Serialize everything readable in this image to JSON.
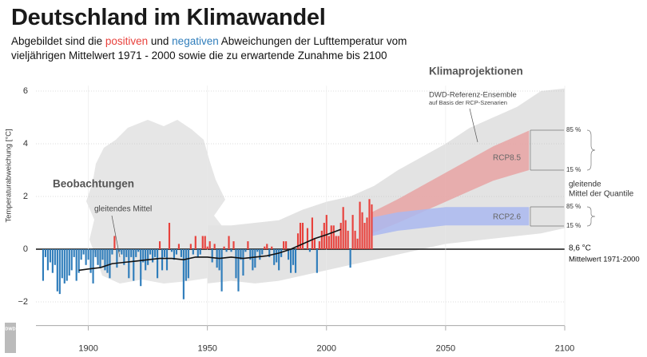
{
  "chart_data": {
    "type": "bar",
    "title": "Deutschland im Klimawandel",
    "subtitle": [
      "Abgebildet sind die ",
      "positiven",
      " und ",
      "negativen",
      " Abweichungen der Lufttemperatur vom",
      "vieljährigen Mittelwert 1971 - 2000 sowie die zu erwartende Zunahme bis 2100"
    ],
    "ylabel": "Temperaturabweichung [°C]",
    "positive_color": "#e8413c",
    "negative_color": "#2f7dbb",
    "x": [
      1881,
      1882,
      1883,
      1884,
      1885,
      1886,
      1887,
      1888,
      1889,
      1890,
      1891,
      1892,
      1893,
      1894,
      1895,
      1896,
      1897,
      1898,
      1899,
      1900,
      1901,
      1902,
      1903,
      1904,
      1905,
      1906,
      1907,
      1908,
      1909,
      1910,
      1911,
      1912,
      1913,
      1914,
      1915,
      1916,
      1917,
      1918,
      1919,
      1920,
      1921,
      1922,
      1923,
      1924,
      1925,
      1926,
      1927,
      1928,
      1929,
      1930,
      1931,
      1932,
      1933,
      1934,
      1935,
      1936,
      1937,
      1938,
      1939,
      1940,
      1941,
      1942,
      1943,
      1944,
      1945,
      1946,
      1947,
      1948,
      1949,
      1950,
      1951,
      1952,
      1953,
      1954,
      1955,
      1956,
      1957,
      1958,
      1959,
      1960,
      1961,
      1962,
      1963,
      1964,
      1965,
      1966,
      1967,
      1968,
      1969,
      1970,
      1971,
      1972,
      1973,
      1974,
      1975,
      1976,
      1977,
      1978,
      1979,
      1980,
      1981,
      1982,
      1983,
      1984,
      1985,
      1986,
      1987,
      1988,
      1989,
      1990,
      1991,
      1992,
      1993,
      1994,
      1995,
      1996,
      1997,
      1998,
      1999,
      2000,
      2001,
      2002,
      2003,
      2004,
      2005,
      2006,
      2007,
      2008,
      2009,
      2010,
      2011,
      2012,
      2013,
      2014,
      2015,
      2016,
      2017,
      2018,
      2019
    ],
    "values": [
      -1.2,
      -0.3,
      -0.8,
      -0.5,
      -0.9,
      -0.6,
      -1.6,
      -1.7,
      -1.1,
      -1.3,
      -1.2,
      -1.0,
      -0.8,
      -0.3,
      -1.2,
      -0.9,
      -0.4,
      -0.2,
      -0.6,
      -0.4,
      -0.9,
      -1.3,
      -0.3,
      -0.6,
      -0.7,
      -0.4,
      -0.8,
      -0.9,
      -1.1,
      -0.2,
      0.5,
      -0.7,
      -0.1,
      -0.2,
      -0.6,
      -0.3,
      -1.1,
      -0.3,
      -1.2,
      -0.3,
      -0.1,
      -1.4,
      -0.5,
      -0.8,
      -0.6,
      -0.2,
      -0.5,
      -0.3,
      -1.1,
      0.3,
      -0.8,
      -0.3,
      -0.8,
      1.0,
      -0.1,
      -0.4,
      -0.2,
      0.2,
      -0.3,
      -1.9,
      -1.2,
      -1.1,
      0.2,
      -0.2,
      0.5,
      -0.3,
      -0.2,
      0.5,
      0.5,
      0.1,
      0.3,
      -0.5,
      0.2,
      -0.7,
      -0.8,
      -1.6,
      0.1,
      -0.1,
      0.5,
      -0.1,
      0.3,
      -1.1,
      -1.6,
      -0.4,
      -1.0,
      -0.1,
      0.3,
      -0.4,
      -0.8,
      -0.7,
      -0.1,
      -0.4,
      -0.2,
      0.1,
      0.2,
      -0.3,
      0.1,
      -0.6,
      -0.5,
      -0.8,
      -0.3,
      0.3,
      0.3,
      -0.4,
      -0.9,
      -0.6,
      -0.9,
      0.6,
      1.0,
      1.0,
      0.0,
      0.8,
      -0.1,
      1.2,
      0.4,
      -0.9,
      0.3,
      0.7,
      1.0,
      1.3,
      0.5,
      0.9,
      0.9,
      0.5,
      0.5,
      1.0,
      1.6,
      1.1,
      0.7,
      -0.7,
      1.3,
      0.7,
      0.4,
      1.8,
      1.4,
      1.0,
      1.2,
      1.9,
      1.7
    ],
    "mean": {
      "name": "gleitendes Mittel",
      "color": "#111111",
      "x": [
        1896,
        1900,
        1905,
        1910,
        1915,
        1920,
        1925,
        1930,
        1935,
        1940,
        1945,
        1950,
        1955,
        1960,
        1965,
        1970,
        1975,
        1980,
        1985,
        1990,
        1995,
        2000,
        2006
      ],
      "values": [
        -0.8,
        -0.75,
        -0.7,
        -0.55,
        -0.5,
        -0.45,
        -0.4,
        -0.35,
        -0.35,
        -0.4,
        -0.3,
        -0.3,
        -0.35,
        -0.3,
        -0.35,
        -0.3,
        -0.25,
        -0.15,
        0.0,
        0.2,
        0.4,
        0.55,
        0.75
      ]
    },
    "ensemble": {
      "name": "DWD-Referenz-Ensemble",
      "note": "auf Basis der RCP-Szenarien",
      "color": "#e3e3e3",
      "x": [
        1950,
        1960,
        1970,
        1980,
        1990,
        2000,
        2010,
        2020,
        2030,
        2040,
        2050,
        2060,
        2070,
        2080,
        2090,
        2100
      ],
      "lower": [
        -1.3,
        -1.2,
        -1.3,
        -1.2,
        -1.0,
        -0.8,
        -0.6,
        -0.4,
        -0.2,
        0.0,
        0.2,
        0.3,
        0.4,
        0.5,
        0.6,
        0.8
      ],
      "upper": [
        0.9,
        0.9,
        1.0,
        1.1,
        1.5,
        1.8,
        2.0,
        2.4,
        3.0,
        3.5,
        4.0,
        4.6,
        5.0,
        5.4,
        6.0,
        6.1
      ]
    },
    "bands": [
      {
        "name": "RCP8.5",
        "color": "#e7a3a3",
        "x": [
          2019,
          2030,
          2040,
          2050,
          2060,
          2070,
          2085
        ],
        "lower": [
          0.6,
          1.0,
          1.4,
          1.8,
          2.2,
          2.6,
          3.0
        ],
        "upper": [
          1.4,
          1.9,
          2.4,
          2.9,
          3.4,
          3.9,
          4.5
        ]
      },
      {
        "name": "RCP2.6",
        "color": "#aab8f0",
        "x": [
          2019,
          2030,
          2040,
          2050,
          2060,
          2070,
          2085
        ],
        "lower": [
          0.5,
          0.7,
          0.8,
          0.9,
          0.9,
          0.9,
          0.9
        ],
        "upper": [
          1.2,
          1.4,
          1.5,
          1.6,
          1.6,
          1.6,
          1.6
        ]
      }
    ],
    "quantile_labels": [
      "85 %",
      "15 %",
      "85 %",
      "15 %"
    ],
    "quantile_note": [
      "gleitende",
      "Mittel der Quantile"
    ],
    "annotations": {
      "observations": "Beobachtungen",
      "projections": "Klimaprojektionen",
      "reference": "8,6 °C",
      "reference_note": "Mittelwert 1971-2000",
      "logo": "DWD"
    },
    "xlim": [
      1878,
      2100
    ],
    "xticks": [
      1900,
      1950,
      2000,
      2050,
      2100
    ],
    "ylim": [
      -2.9,
      6.2
    ],
    "yticks": [
      {
        "value": -2,
        "label": "−2"
      },
      0,
      2,
      4,
      6
    ],
    "grid": true
  }
}
